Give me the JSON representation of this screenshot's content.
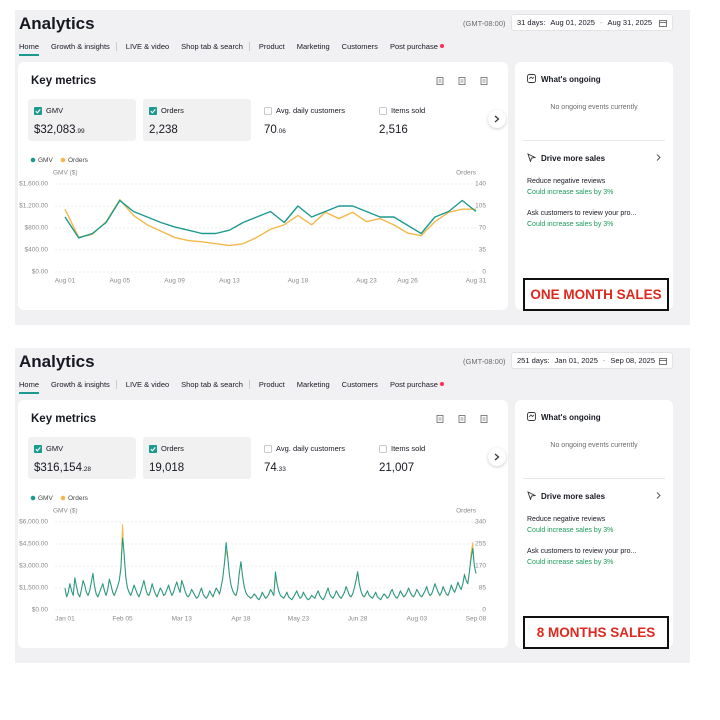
{
  "panels": [
    {
      "title": "Analytics",
      "timezone": "(GMT-08:00)",
      "range_label": "31 days:",
      "range_start": "Aug 01, 2025",
      "range_sep": "-",
      "range_end": "Aug 31, 2025",
      "tabs": [
        "Home",
        "Growth & insights",
        "LIVE & video",
        "Shop tab & search",
        "Product",
        "Marketing",
        "Customers",
        "Post purchase"
      ],
      "card_title": "Key metrics",
      "metrics": [
        {
          "label": "GMV",
          "value": "$32,083",
          "decimals": ".99",
          "checked": true
        },
        {
          "label": "Orders",
          "value": "2,238",
          "checked": true
        },
        {
          "label": "Avg. daily customers",
          "value": "70",
          "decimals": ".06",
          "checked": false
        },
        {
          "label": "Items sold",
          "value": "2,516",
          "checked": false
        }
      ],
      "ongoing_title": "What's ongoing",
      "ongoing_text": "No ongoing events currently",
      "drive_title": "Drive more sales",
      "suggestions": [
        {
          "title": "Reduce negative reviews",
          "note": "Could increase sales by 3%"
        },
        {
          "title": "Ask customers to review your pro...",
          "note": "Could increase sales by 3%"
        }
      ],
      "caption": "ONE MONTH SALES"
    },
    {
      "title": "Analytics",
      "timezone": "(GMT-08:00)",
      "range_label": "251 days:",
      "range_start": "Jan 01, 2025",
      "range_sep": "-",
      "range_end": "Sep 08, 2025",
      "tabs": [
        "Home",
        "Growth & insights",
        "LIVE & video",
        "Shop tab & search",
        "Product",
        "Marketing",
        "Customers",
        "Post purchase"
      ],
      "card_title": "Key metrics",
      "metrics": [
        {
          "label": "GMV",
          "value": "$316,154",
          "decimals": ".28",
          "checked": true
        },
        {
          "label": "Orders",
          "value": "19,018",
          "checked": true
        },
        {
          "label": "Avg. daily customers",
          "value": "74",
          "decimals": ".33",
          "checked": false
        },
        {
          "label": "Items sold",
          "value": "21,007",
          "checked": false
        }
      ],
      "ongoing_title": "What's ongoing",
      "ongoing_text": "No ongoing events currently",
      "drive_title": "Drive more sales",
      "suggestions": [
        {
          "title": "Reduce negative reviews",
          "note": "Could increase sales by 3%"
        },
        {
          "title": "Ask customers to review your pro...",
          "note": "Could increase sales by 3%"
        }
      ],
      "caption": "8 MONTHS SALES"
    }
  ],
  "chart_data": [
    {
      "type": "line",
      "y_label": "GMV ($)",
      "y2_label": "Orders",
      "grid": true,
      "categories": [
        "Aug 01",
        null,
        null,
        null,
        "Aug 05",
        null,
        null,
        null,
        "Aug 09",
        null,
        null,
        null,
        "Aug 13",
        null,
        null,
        null,
        null,
        "Aug 18",
        null,
        null,
        null,
        null,
        "Aug 23",
        null,
        null,
        "Aug 26",
        null,
        null,
        null,
        null,
        "Aug 31"
      ],
      "series": [
        {
          "name": "GMV",
          "color": "#1b9a8f",
          "values": [
            1000,
            620,
            700,
            900,
            1300,
            1100,
            1000,
            900,
            820,
            760,
            700,
            700,
            760,
            900,
            1000,
            1100,
            900,
            1200,
            1000,
            1100,
            1200,
            1200,
            1100,
            1000,
            1000,
            850,
            700,
            1000,
            1100,
            1300,
            1100
          ]
        },
        {
          "name": "Orders",
          "color": "#f2b84b",
          "axis": "y2",
          "values": [
            100,
            55,
            60,
            80,
            115,
            90,
            75,
            65,
            55,
            50,
            48,
            45,
            42,
            45,
            55,
            68,
            75,
            90,
            75,
            95,
            85,
            95,
            80,
            85,
            75,
            62,
            58,
            80,
            95,
            100,
            100
          ]
        }
      ],
      "ylim": [
        0,
        1600
      ],
      "yticks": [
        {
          "value": 0,
          "label": "$0.00"
        },
        {
          "value": 400,
          "label": "$400.00"
        },
        {
          "value": 800,
          "label": "$800.00"
        },
        {
          "value": 1200,
          "label": "$1,200.00"
        },
        {
          "value": 1600,
          "label": "$1,600.00"
        }
      ],
      "y2lim": [
        0,
        140
      ],
      "y2ticks": [
        0,
        35,
        70,
        105,
        140
      ]
    },
    {
      "type": "line",
      "y_label": "GMV ($)",
      "y2_label": "Orders",
      "grid": true,
      "categories": [
        "Jan 01",
        null,
        null,
        null,
        null,
        null,
        null,
        null,
        null,
        null,
        null,
        null,
        null,
        null,
        null,
        null,
        null,
        null,
        null,
        null,
        null,
        null,
        null,
        null,
        null,
        null,
        null,
        null,
        null,
        null,
        null,
        null,
        null,
        null,
        null,
        "Feb 05",
        null,
        null,
        null,
        null,
        null,
        null,
        null,
        null,
        null,
        null,
        null,
        null,
        null,
        null,
        null,
        null,
        null,
        null,
        null,
        null,
        null,
        null,
        null,
        null,
        null,
        null,
        null,
        null,
        null,
        null,
        null,
        null,
        null,
        null,
        null,
        "Mar 13",
        null,
        null,
        null,
        null,
        null,
        null,
        null,
        null,
        null,
        null,
        null,
        null,
        null,
        null,
        null,
        null,
        null,
        null,
        null,
        null,
        null,
        null,
        null,
        null,
        null,
        null,
        null,
        null,
        null,
        null,
        null,
        null,
        null,
        null,
        null,
        "Apr 18",
        null,
        null,
        null,
        null,
        null,
        null,
        null,
        null,
        null,
        null,
        null,
        null,
        null,
        null,
        null,
        null,
        null,
        null,
        null,
        null,
        null,
        null,
        null,
        null,
        null,
        null,
        null,
        null,
        null,
        null,
        null,
        null,
        null,
        null,
        "May 23",
        null,
        null,
        null,
        null,
        null,
        null,
        null,
        null,
        null,
        null,
        null,
        null,
        null,
        null,
        null,
        null,
        null,
        null,
        null,
        null,
        null,
        null,
        null,
        null,
        null,
        null,
        null,
        null,
        null,
        null,
        null,
        null,
        null,
        null,
        null,
        "Jun 28",
        null,
        null,
        null,
        null,
        null,
        null,
        null,
        null,
        null,
        null,
        null,
        null,
        null,
        null,
        null,
        null,
        null,
        null,
        null,
        null,
        null,
        null,
        null,
        null,
        null,
        null,
        null,
        null,
        null,
        null,
        null,
        null,
        null,
        null,
        null,
        "Aug 03",
        null,
        null,
        null,
        null,
        null,
        null,
        null,
        null,
        null,
        null,
        null,
        null,
        null,
        null,
        null,
        null,
        null,
        null,
        null,
        null,
        null,
        null,
        null,
        null,
        null,
        null,
        null,
        null,
        null,
        null,
        null,
        null,
        null,
        null,
        null,
        "Sep 08"
      ],
      "series": [
        {
          "name": "GMV",
          "color": "#1b9a8f",
          "values": [
            1500,
            900,
            1200,
            1800,
            1300,
            1000,
            2200,
            1600,
            1100,
            900,
            1400,
            2000,
            1700,
            1200,
            1000,
            1300,
            1900,
            2500,
            1600,
            1100,
            900,
            1200,
            1500,
            1800,
            1300,
            1000,
            1400,
            2100,
            1700,
            1200,
            1000,
            1300,
            1600,
            2000,
            2800,
            4900,
            3800,
            2200,
            1500,
            1200,
            1000,
            1300,
            1700,
            1400,
            1100,
            900,
            1200,
            1600,
            2000,
            1500,
            1100,
            1000,
            1300,
            1800,
            1400,
            1100,
            900,
            1200,
            1500,
            1300,
            1000,
            1100,
            1400,
            1700,
            1300,
            1000,
            1200,
            1600,
            1900,
            1500,
            1200,
            2000,
            1700,
            1300,
            1000,
            900,
            1100,
            1400,
            1200,
            1000,
            800,
            900,
            1200,
            1500,
            1100,
            900,
            800,
            1000,
            1300,
            1100,
            900,
            1200,
            1500,
            1300,
            1100,
            1600,
            2200,
            3200,
            4600,
            3600,
            2400,
            1700,
            1300,
            1100,
            1000,
            1400,
            2500,
            3300,
            2300,
            1600,
            1200,
            1000,
            900,
            800,
            900,
            1100,
            1000,
            800,
            700,
            900,
            1200,
            1000,
            800,
            900,
            1100,
            1400,
            1200,
            1000,
            2600,
            1800,
            1300,
            1000,
            900,
            800,
            1000,
            1200,
            900,
            800,
            700,
            900,
            1100,
            1300,
            1000,
            800,
            900,
            1200,
            1000,
            800,
            700,
            800,
            1000,
            900,
            800,
            1100,
            1300,
            1000,
            800,
            700,
            900,
            1200,
            1500,
            1100,
            900,
            800,
            1000,
            1300,
            1100,
            900,
            800,
            1000,
            1200,
            1600,
            1300,
            1000,
            900,
            1100,
            1500,
            2000,
            2600,
            1800,
            1300,
            1000,
            900,
            1100,
            1300,
            1000,
            900,
            800,
            1000,
            1200,
            900,
            800,
            700,
            900,
            1100,
            1000,
            800,
            900,
            1200,
            1400,
            1100,
            900,
            800,
            1000,
            1300,
            1100,
            900,
            1000,
            1200,
            1500,
            1200,
            1000,
            900,
            1100,
            1400,
            1200,
            1000,
            900,
            1100,
            1300,
            1600,
            1200,
            1000,
            1100,
            1400,
            1800,
            1500,
            1200,
            1000,
            1200,
            1600,
            1300,
            1100,
            1000,
            1300,
            1700,
            1400,
            1200,
            1500,
            1900,
            1600,
            1400,
            1800,
            2400,
            2000,
            1800,
            2600,
            3500,
            4200,
            3000,
            2500
          ]
        },
        {
          "name": "Orders",
          "color": "#f2b84b",
          "axis": "y2",
          "values": [
            80,
            50,
            70,
            100,
            75,
            55,
            120,
            90,
            60,
            50,
            80,
            115,
            95,
            70,
            55,
            75,
            105,
            140,
            90,
            60,
            50,
            70,
            85,
            100,
            75,
            55,
            80,
            120,
            95,
            70,
            55,
            75,
            90,
            115,
            170,
            330,
            200,
            125,
            85,
            70,
            55,
            75,
            95,
            80,
            60,
            50,
            70,
            90,
            115,
            85,
            60,
            55,
            75,
            100,
            80,
            60,
            50,
            70,
            85,
            75,
            55,
            60,
            80,
            95,
            75,
            55,
            70,
            90,
            110,
            85,
            70,
            115,
            95,
            75,
            55,
            50,
            60,
            80,
            70,
            55,
            45,
            50,
            70,
            85,
            60,
            50,
            45,
            55,
            75,
            60,
            50,
            70,
            85,
            75,
            60,
            90,
            125,
            185,
            230,
            200,
            135,
            95,
            75,
            60,
            55,
            80,
            140,
            185,
            130,
            90,
            70,
            55,
            50,
            45,
            50,
            60,
            55,
            45,
            40,
            50,
            70,
            55,
            45,
            50,
            60,
            80,
            70,
            55,
            130,
            100,
            75,
            55,
            50,
            45,
            55,
            70,
            50,
            45,
            40,
            50,
            60,
            75,
            55,
            45,
            50,
            70,
            55,
            45,
            40,
            45,
            55,
            50,
            45,
            60,
            75,
            55,
            45,
            40,
            50,
            70,
            85,
            60,
            50,
            45,
            55,
            75,
            60,
            50,
            45,
            55,
            70,
            90,
            75,
            55,
            50,
            60,
            85,
            115,
            150,
            100,
            75,
            55,
            50,
            60,
            75,
            55,
            50,
            45,
            55,
            70,
            50,
            45,
            40,
            50,
            60,
            55,
            45,
            50,
            70,
            80,
            60,
            50,
            45,
            55,
            75,
            60,
            50,
            55,
            70,
            85,
            70,
            55,
            50,
            60,
            80,
            70,
            55,
            50,
            60,
            75,
            90,
            70,
            55,
            60,
            80,
            100,
            85,
            70,
            55,
            70,
            90,
            75,
            60,
            55,
            75,
            95,
            80,
            70,
            85,
            105,
            90,
            80,
            100,
            140,
            115,
            100,
            150,
            220,
            260,
            170,
            140
          ]
        }
      ],
      "ylim": [
        0,
        6000
      ],
      "yticks": [
        {
          "value": 0,
          "label": "$0.00"
        },
        {
          "value": 1500,
          "label": "$1,500.00"
        },
        {
          "value": 3000,
          "label": "$3,000.00"
        },
        {
          "value": 4500,
          "label": "$4,500.00"
        },
        {
          "value": 6000,
          "label": "$6,000.00"
        }
      ],
      "y2lim": [
        0,
        340
      ],
      "y2ticks": [
        0,
        85,
        170,
        255,
        340
      ]
    }
  ]
}
